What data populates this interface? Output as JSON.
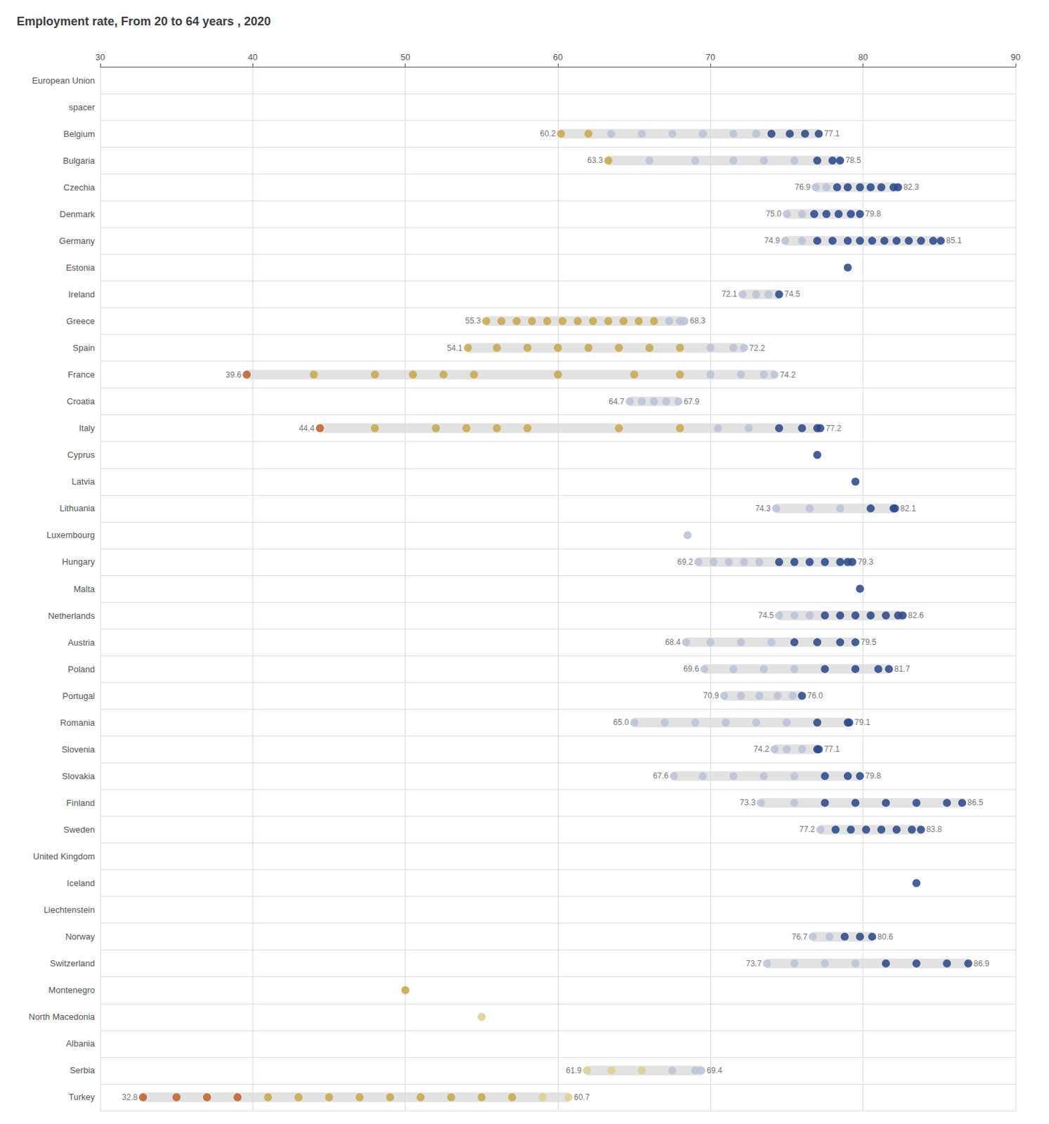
{
  "chart_data": {
    "type": "scatter",
    "orientation": "horizontal",
    "title": "Employment rate, From 20 to 64 years , 2020",
    "grid": true,
    "xlim": [
      30,
      90
    ],
    "xticks": [
      30,
      40,
      50,
      60,
      70,
      80,
      90
    ],
    "categories": [
      "European Union",
      "spacer",
      "Belgium",
      "Bulgaria",
      "Czechia",
      "Denmark",
      "Germany",
      "Estonia",
      "Ireland",
      "Greece",
      "Spain",
      "France",
      "Croatia",
      "Italy",
      "Cyprus",
      "Latvia",
      "Lithuania",
      "Luxembourg",
      "Hungary",
      "Malta",
      "Netherlands",
      "Austria",
      "Poland",
      "Portugal",
      "Romania",
      "Slovenia",
      "Slovakia",
      "Finland",
      "Sweden",
      "United Kingdom",
      "Iceland",
      "Liechtenstein",
      "Norway",
      "Switzerland",
      "Montenegro",
      "North Macedonia",
      "Albania",
      "Serbia",
      "Turkey"
    ],
    "values": [
      [],
      [],
      [
        60.2,
        62.0,
        63.5,
        65.5,
        67.5,
        69.5,
        71.5,
        73.0,
        74.0,
        75.2,
        76.2,
        77.1
      ],
      [
        63.3,
        66.0,
        69.0,
        71.5,
        73.5,
        75.5,
        77.0,
        78.0,
        78.5
      ],
      [
        76.9,
        77.6,
        78.3,
        79.0,
        79.8,
        80.5,
        81.2,
        82.0,
        82.3
      ],
      [
        75.0,
        76.0,
        76.8,
        77.6,
        78.4,
        79.2,
        79.8
      ],
      [
        74.9,
        76.0,
        77.0,
        78.0,
        79.0,
        79.8,
        80.6,
        81.4,
        82.2,
        83.0,
        83.8,
        84.6,
        85.1
      ],
      [
        79.0
      ],
      [
        72.1,
        73.0,
        73.8,
        74.5
      ],
      [
        55.3,
        56.3,
        57.3,
        58.3,
        59.3,
        60.3,
        61.3,
        62.3,
        63.3,
        64.3,
        65.3,
        66.3,
        67.3,
        68.0,
        68.3
      ],
      [
        54.1,
        56.0,
        58.0,
        60.0,
        62.0,
        64.0,
        66.0,
        68.0,
        70.0,
        71.5,
        72.2
      ],
      [
        39.6,
        44.0,
        48.0,
        50.5,
        52.5,
        54.5,
        60.0,
        65.0,
        68.0,
        70.0,
        72.0,
        73.5,
        74.2
      ],
      [
        64.7,
        65.5,
        66.3,
        67.1,
        67.9
      ],
      [
        44.4,
        48.0,
        52.0,
        54.0,
        56.0,
        58.0,
        64.0,
        68.0,
        70.5,
        72.5,
        74.5,
        76.0,
        77.0,
        77.2
      ],
      [
        77.0
      ],
      [
        79.5
      ],
      [
        74.3,
        76.5,
        78.5,
        80.5,
        82.0,
        82.1
      ],
      [
        68.5
      ],
      [
        69.2,
        70.2,
        71.2,
        72.2,
        73.2,
        74.5,
        75.5,
        76.5,
        77.5,
        78.5,
        79.0,
        79.3
      ],
      [
        79.8
      ],
      [
        74.5,
        75.5,
        76.5,
        77.5,
        78.5,
        79.5,
        80.5,
        81.5,
        82.3,
        82.6
      ],
      [
        68.4,
        70.0,
        72.0,
        74.0,
        75.5,
        77.0,
        78.5,
        79.5
      ],
      [
        69.6,
        71.5,
        73.5,
        75.5,
        77.5,
        79.5,
        81.0,
        81.7
      ],
      [
        70.9,
        72.0,
        73.2,
        74.4,
        75.4,
        76.0
      ],
      [
        65.0,
        67.0,
        69.0,
        71.0,
        73.0,
        75.0,
        77.0,
        79.0,
        79.1
      ],
      [
        74.2,
        75.0,
        76.0,
        77.0,
        77.1
      ],
      [
        67.6,
        69.5,
        71.5,
        73.5,
        75.5,
        77.5,
        79.0,
        79.8
      ],
      [
        73.3,
        75.5,
        77.5,
        79.5,
        81.5,
        83.5,
        85.5,
        86.5
      ],
      [
        77.2,
        78.2,
        79.2,
        80.2,
        81.2,
        82.2,
        83.2,
        83.8
      ],
      [],
      [
        83.5
      ],
      [],
      [
        76.7,
        77.8,
        78.8,
        79.8,
        80.6
      ],
      [
        73.7,
        75.5,
        77.5,
        79.5,
        81.5,
        83.5,
        85.5,
        86.9
      ],
      [
        50.0
      ],
      [
        55.0
      ],
      [],
      [
        61.9,
        63.5,
        65.5,
        67.5,
        69.0,
        69.4
      ],
      [
        32.8,
        35.0,
        37.0,
        39.0,
        41.0,
        43.0,
        45.0,
        47.0,
        49.0,
        51.0,
        53.0,
        55.0,
        57.0,
        59.0,
        60.7
      ]
    ],
    "colors": [
      [],
      [],
      [
        "#c8a84b",
        "#c8a84b",
        "#b8c4d8",
        "#b8c4d8",
        "#b8c4d8",
        "#b8c4d8",
        "#b8c4d8",
        "#b8c4d8",
        "#2b4a8b",
        "#2b4a8b",
        "#2b4a8b",
        "#2b4a8b"
      ],
      [
        "#c8a84b",
        "#b8c4d8",
        "#b8c4d8",
        "#b8c4d8",
        "#b8c4d8",
        "#b8c4d8",
        "#2b4a8b",
        "#2b4a8b",
        "#2b4a8b"
      ],
      [
        "#b8c4d8",
        "#b8c4d8",
        "#2b4a8b",
        "#2b4a8b",
        "#2b4a8b",
        "#2b4a8b",
        "#2b4a8b",
        "#2b4a8b",
        "#2b4a8b"
      ],
      [
        "#b8c4d8",
        "#b8c4d8",
        "#2b4a8b",
        "#2b4a8b",
        "#2b4a8b",
        "#2b4a8b",
        "#2b4a8b"
      ],
      [
        "#b8c4d8",
        "#b8c4d8",
        "#2b4a8b",
        "#2b4a8b",
        "#2b4a8b",
        "#2b4a8b",
        "#2b4a8b",
        "#2b4a8b",
        "#2b4a8b",
        "#2b4a8b",
        "#2b4a8b",
        "#2b4a8b",
        "#2b4a8b"
      ],
      [
        "#2b4a8b"
      ],
      [
        "#b8c4d8",
        "#b8c4d8",
        "#b8c4d8",
        "#2b4a8b"
      ],
      [
        "#c8a84b",
        "#c8a84b",
        "#c8a84b",
        "#c8a84b",
        "#c8a84b",
        "#c8a84b",
        "#c8a84b",
        "#c8a84b",
        "#c8a84b",
        "#c8a84b",
        "#c8a84b",
        "#c8a84b",
        "#b8c4d8",
        "#b8c4d8",
        "#b8c4d8"
      ],
      [
        "#c8a84b",
        "#c8a84b",
        "#c8a84b",
        "#c8a84b",
        "#c8a84b",
        "#c8a84b",
        "#c8a84b",
        "#c8a84b",
        "#b8c4d8",
        "#b8c4d8",
        "#b8c4d8"
      ],
      [
        "#c0622a",
        "#c8a84b",
        "#c8a84b",
        "#c8a84b",
        "#c8a84b",
        "#c8a84b",
        "#c8a84b",
        "#c8a84b",
        "#c8a84b",
        "#b8c4d8",
        "#b8c4d8",
        "#b8c4d8",
        "#b8c4d8"
      ],
      [
        "#b8c4d8",
        "#b8c4d8",
        "#b8c4d8",
        "#b8c4d8",
        "#b8c4d8"
      ],
      [
        "#c0622a",
        "#c8a84b",
        "#c8a84b",
        "#c8a84b",
        "#c8a84b",
        "#c8a84b",
        "#c8a84b",
        "#c8a84b",
        "#b8c4d8",
        "#b8c4d8",
        "#2b4a8b",
        "#2b4a8b",
        "#2b4a8b",
        "#2b4a8b"
      ],
      [
        "#2b4a8b"
      ],
      [
        "#2b4a8b"
      ],
      [
        "#b8c4d8",
        "#b8c4d8",
        "#b8c4d8",
        "#2b4a8b",
        "#2b4a8b",
        "#2b4a8b"
      ],
      [
        "#b8c4d8"
      ],
      [
        "#b8c4d8",
        "#b8c4d8",
        "#b8c4d8",
        "#b8c4d8",
        "#b8c4d8",
        "#2b4a8b",
        "#2b4a8b",
        "#2b4a8b",
        "#2b4a8b",
        "#2b4a8b",
        "#2b4a8b",
        "#2b4a8b"
      ],
      [
        "#2b4a8b"
      ],
      [
        "#b8c4d8",
        "#b8c4d8",
        "#b8c4d8",
        "#2b4a8b",
        "#2b4a8b",
        "#2b4a8b",
        "#2b4a8b",
        "#2b4a8b",
        "#2b4a8b",
        "#2b4a8b"
      ],
      [
        "#b8c4d8",
        "#b8c4d8",
        "#b8c4d8",
        "#b8c4d8",
        "#2b4a8b",
        "#2b4a8b",
        "#2b4a8b",
        "#2b4a8b"
      ],
      [
        "#b8c4d8",
        "#b8c4d8",
        "#b8c4d8",
        "#b8c4d8",
        "#2b4a8b",
        "#2b4a8b",
        "#2b4a8b",
        "#2b4a8b"
      ],
      [
        "#b8c4d8",
        "#b8c4d8",
        "#b8c4d8",
        "#b8c4d8",
        "#b8c4d8",
        "#2b4a8b"
      ],
      [
        "#b8c4d8",
        "#b8c4d8",
        "#b8c4d8",
        "#b8c4d8",
        "#b8c4d8",
        "#b8c4d8",
        "#2b4a8b",
        "#2b4a8b",
        "#2b4a8b"
      ],
      [
        "#b8c4d8",
        "#b8c4d8",
        "#b8c4d8",
        "#2b4a8b",
        "#2b4a8b"
      ],
      [
        "#b8c4d8",
        "#b8c4d8",
        "#b8c4d8",
        "#b8c4d8",
        "#b8c4d8",
        "#2b4a8b",
        "#2b4a8b",
        "#2b4a8b"
      ],
      [
        "#b8c4d8",
        "#b8c4d8",
        "#2b4a8b",
        "#2b4a8b",
        "#2b4a8b",
        "#2b4a8b",
        "#2b4a8b",
        "#2b4a8b"
      ],
      [
        "#b8c4d8",
        "#2b4a8b",
        "#2b4a8b",
        "#2b4a8b",
        "#2b4a8b",
        "#2b4a8b",
        "#2b4a8b",
        "#2b4a8b"
      ],
      [],
      [
        "#2b4a8b"
      ],
      [],
      [
        "#b8c4d8",
        "#b8c4d8",
        "#2b4a8b",
        "#2b4a8b",
        "#2b4a8b"
      ],
      [
        "#b8c4d8",
        "#b8c4d8",
        "#b8c4d8",
        "#b8c4d8",
        "#2b4a8b",
        "#2b4a8b",
        "#2b4a8b",
        "#2b4a8b"
      ],
      [
        "#c8a84b"
      ],
      [
        "#ddd090"
      ],
      [],
      [
        "#ddd090",
        "#ddd090",
        "#ddd090",
        "#b8c4d8",
        "#b8c4d8",
        "#b8c4d8"
      ],
      [
        "#c0622a",
        "#c0622a",
        "#c0622a",
        "#c0622a",
        "#c8a84b",
        "#c8a84b",
        "#c8a84b",
        "#c8a84b",
        "#c8a84b",
        "#c8a84b",
        "#c8a84b",
        "#c8a84b",
        "#c8a84b",
        "#ddd090",
        "#ddd090"
      ]
    ],
    "ranges": [
      null,
      null,
      [
        60.2,
        77.1
      ],
      [
        63.3,
        78.5
      ],
      [
        76.9,
        82.3
      ],
      [
        75.0,
        79.8
      ],
      [
        74.9,
        85.1
      ],
      null,
      [
        72.1,
        74.5
      ],
      [
        55.3,
        68.3
      ],
      [
        54.1,
        72.2
      ],
      [
        39.6,
        74.2
      ],
      [
        64.7,
        67.9
      ],
      [
        44.4,
        77.2
      ],
      null,
      null,
      [
        74.3,
        82.1
      ],
      null,
      [
        69.2,
        79.3
      ],
      null,
      [
        74.5,
        82.6
      ],
      [
        68.4,
        79.5
      ],
      [
        69.6,
        81.7
      ],
      [
        70.9,
        76.0
      ],
      [
        65.0,
        79.1
      ],
      [
        74.2,
        77.1
      ],
      [
        67.6,
        79.8
      ],
      [
        73.3,
        86.5
      ],
      [
        77.2,
        83.8
      ],
      null,
      null,
      null,
      [
        76.7,
        80.6
      ],
      [
        73.7,
        86.9
      ],
      null,
      null,
      null,
      [
        61.9,
        69.4
      ],
      [
        32.8,
        60.7
      ]
    ],
    "range_labels": [
      null,
      null,
      [
        "60.2",
        "77.1"
      ],
      [
        "63.3",
        "78.5"
      ],
      [
        "76.9",
        "82.3"
      ],
      [
        "75.0",
        "79.8"
      ],
      [
        "74.9",
        "85.1"
      ],
      null,
      [
        "72.1",
        "74.5"
      ],
      [
        "55.3",
        "68.3"
      ],
      [
        "54.1",
        "72.2"
      ],
      [
        "39.6",
        "74.2"
      ],
      [
        "64.7",
        "67.9"
      ],
      [
        "44.4",
        "77.2"
      ],
      null,
      null,
      [
        "74.3",
        "82.1"
      ],
      null,
      [
        "69.2",
        "79.3"
      ],
      null,
      [
        "74.5",
        "82.6"
      ],
      [
        "68.4",
        "79.5"
      ],
      [
        "69.6",
        "81.7"
      ],
      [
        "70.9",
        "76.0"
      ],
      [
        "65.0",
        "79.1"
      ],
      [
        "74.2",
        "77.1"
      ],
      [
        "67.6",
        "79.8"
      ],
      [
        "73.3",
        "86.5"
      ],
      [
        "77.2",
        "83.8"
      ],
      null,
      null,
      null,
      [
        "76.7",
        "80.6"
      ],
      [
        "73.7",
        "86.9"
      ],
      null,
      null,
      null,
      [
        "61.9",
        "69.4"
      ],
      [
        "32.8",
        "60.7"
      ]
    ]
  }
}
